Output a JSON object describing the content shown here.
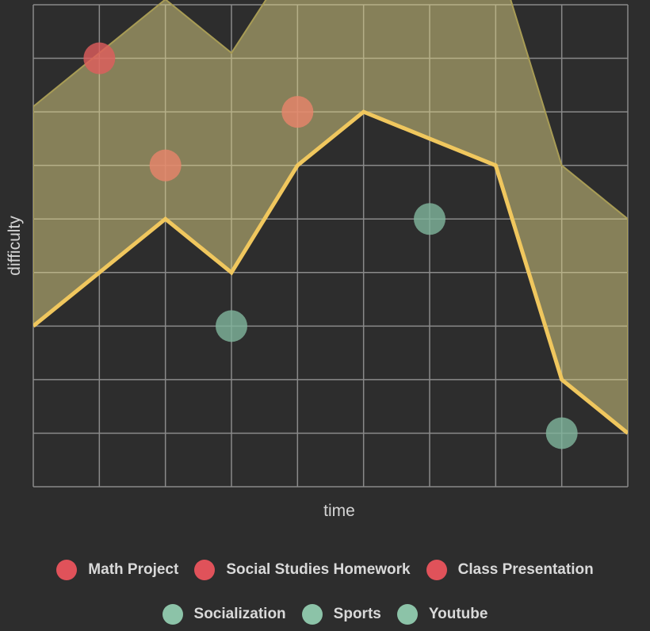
{
  "chart_data": {
    "type": "line",
    "xlabel": "time",
    "ylabel": "difficulty",
    "x": [
      0,
      1,
      2,
      3,
      4,
      5,
      6,
      7,
      8,
      9
    ],
    "xlim": [
      0,
      9
    ],
    "ylim": [
      0,
      9
    ],
    "grid": true,
    "legend_position": "bottom",
    "series": [
      {
        "values": [
          3,
          4,
          5,
          4,
          6,
          7,
          6.5,
          6,
          2,
          1
        ],
        "color": "#f0c75e"
      }
    ],
    "band": {
      "lower": [
        3,
        4,
        5,
        4,
        6,
        7,
        6.5,
        6,
        2,
        1
      ],
      "upper": [
        7.1,
        8.1,
        9.1,
        8.1,
        10,
        10,
        10,
        10,
        6,
        5
      ]
    },
    "points": [
      {
        "x": 1,
        "y": 8,
        "color": "#e05d5d",
        "group": "Math Project"
      },
      {
        "x": 2,
        "y": 6,
        "color": "#e8836a",
        "group": "Social Studies Homework"
      },
      {
        "x": 4,
        "y": 7,
        "color": "#e8836a",
        "group": "Class Presentation"
      },
      {
        "x": 3,
        "y": 3,
        "color": "#7fb59c",
        "group": "Socialization"
      },
      {
        "x": 6,
        "y": 5,
        "color": "#7fb59c",
        "group": "Sports"
      },
      {
        "x": 8,
        "y": 1,
        "color": "#7fb59c",
        "group": "Youtube"
      }
    ],
    "legend": [
      {
        "label": "Math Project",
        "color": "#e0525a"
      },
      {
        "label": "Social Studies Homework",
        "color": "#e0525a"
      },
      {
        "label": "Class Presentation",
        "color": "#e0525a"
      },
      {
        "label": "Socialization",
        "color": "#8cc3a8"
      },
      {
        "label": "Sports",
        "color": "#8cc3a8"
      },
      {
        "label": "Youtube",
        "color": "#8cc3a8"
      }
    ]
  }
}
